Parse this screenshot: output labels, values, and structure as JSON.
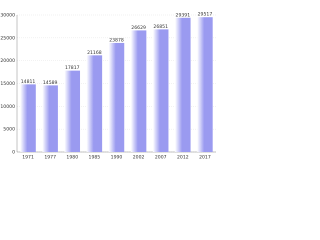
{
  "chart_data": {
    "type": "bar",
    "categories": [
      "1971",
      "1977",
      "1980",
      "1985",
      "1990",
      "2002",
      "2007",
      "2012",
      "2017"
    ],
    "values": [
      14811,
      14589,
      17817,
      21168,
      23878,
      26629,
      26851,
      29391,
      29517
    ],
    "color": "#9a9af0",
    "ylim": [
      0,
      30000
    ],
    "yticks": [
      0,
      5000,
      10000,
      15000,
      20000,
      25000,
      30000
    ],
    "grid": true
  }
}
